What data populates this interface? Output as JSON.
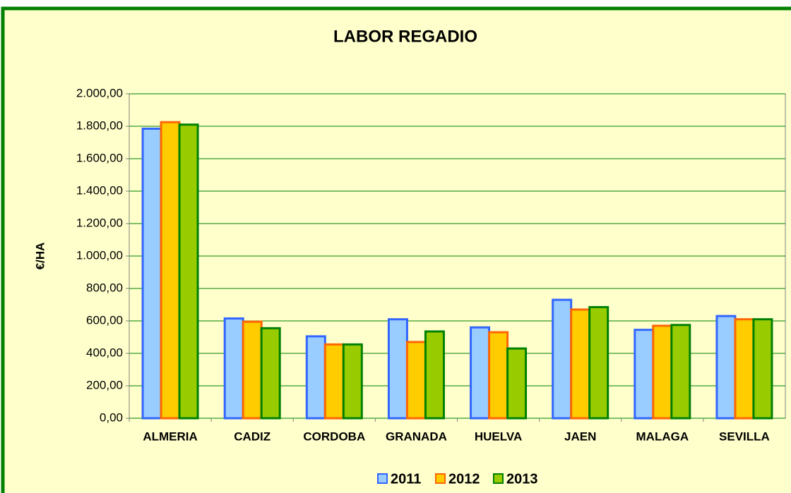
{
  "chart_data": {
    "type": "bar",
    "title": "LABOR REGADIO",
    "ylabel": "€/HA",
    "categories": [
      "ALMERIA",
      "CADIZ",
      "CORDOBA",
      "GRANADA",
      "HUELVA",
      "JAEN",
      "MALAGA",
      "SEVILLA"
    ],
    "series": [
      {
        "name": "2011",
        "color": "#99ccff",
        "edgecolor": "#3366ff",
        "values": [
          1785,
          615,
          505,
          610,
          560,
          730,
          545,
          630
        ]
      },
      {
        "name": "2012",
        "color": "#ffcc00",
        "edgecolor": "#ff6600",
        "values": [
          1825,
          595,
          455,
          470,
          530,
          670,
          570,
          610
        ]
      },
      {
        "name": "2013",
        "color": "#99cc00",
        "edgecolor": "#008000",
        "values": [
          1810,
          555,
          455,
          535,
          430,
          685,
          575,
          610
        ]
      }
    ],
    "ylim": [
      0,
      2000
    ],
    "yticks": [
      {
        "value": 0,
        "label": "0,00"
      },
      {
        "value": 200,
        "label": "200,00"
      },
      {
        "value": 400,
        "label": "400,00"
      },
      {
        "value": 600,
        "label": "600,00"
      },
      {
        "value": 800,
        "label": "800,00"
      },
      {
        "value": 1000,
        "label": "1.000,00"
      },
      {
        "value": 1200,
        "label": "1.200,00"
      },
      {
        "value": 1400,
        "label": "1.400,00"
      },
      {
        "value": 1600,
        "label": "1.600,00"
      },
      {
        "value": 1800,
        "label": "1.800,00"
      },
      {
        "value": 2000,
        "label": "2.000,00"
      }
    ],
    "grid": true,
    "gridcolor": "#008000",
    "legend": "bottom"
  }
}
